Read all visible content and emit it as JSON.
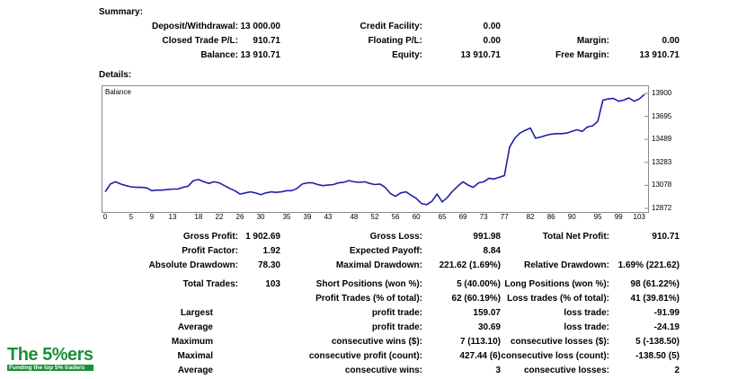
{
  "summary": {
    "title": "Summary:",
    "deposit_label": "Deposit/Withdrawal:",
    "deposit_value": "13 000.00",
    "credit_label": "Credit Facility:",
    "credit_value": "0.00",
    "closed_pl_label": "Closed Trade P/L:",
    "closed_pl_value": "910.71",
    "floating_pl_label": "Floating P/L:",
    "floating_pl_value": "0.00",
    "margin_label": "Margin:",
    "margin_value": "0.00",
    "balance_label": "Balance:",
    "balance_value": "13 910.71",
    "equity_label": "Equity:",
    "equity_value": "13 910.71",
    "free_margin_label": "Free Margin:",
    "free_margin_value": "13 910.71"
  },
  "details": {
    "title": "Details:"
  },
  "chart_data": {
    "type": "line",
    "title": "Balance",
    "xlabel": "",
    "ylabel": "",
    "x_ticks": [
      "0",
      "5",
      "9",
      "13",
      "18",
      "22",
      "26",
      "30",
      "35",
      "39",
      "43",
      "48",
      "52",
      "56",
      "60",
      "65",
      "69",
      "73",
      "77",
      "82",
      "86",
      "90",
      "95",
      "99",
      "103"
    ],
    "y_ticks": [
      "13900",
      "13695",
      "13489",
      "13283",
      "13078",
      "12872"
    ],
    "ylim": [
      12872,
      13900
    ],
    "xlim": [
      0,
      104
    ],
    "grid": false,
    "series": [
      {
        "name": "",
        "color": "#1f1fa8",
        "x": [
          0,
          1,
          2,
          3,
          4,
          5,
          6,
          7,
          8,
          9,
          10,
          11,
          12,
          13,
          14,
          15,
          16,
          17,
          18,
          19,
          20,
          21,
          22,
          23,
          24,
          25,
          26,
          27,
          28,
          29,
          30,
          31,
          32,
          33,
          34,
          35,
          36,
          37,
          38,
          39,
          40,
          41,
          42,
          43,
          44,
          45,
          46,
          47,
          48,
          49,
          50,
          51,
          52,
          53,
          54,
          55,
          56,
          57,
          58,
          59,
          60,
          61,
          62,
          63,
          64,
          65,
          66,
          67,
          68,
          69,
          70,
          71,
          72,
          73,
          74,
          75,
          76,
          77,
          78,
          79,
          80,
          81,
          82,
          83,
          84,
          85,
          86,
          87,
          88,
          89,
          90,
          91,
          92,
          93,
          94,
          95,
          96,
          97,
          98,
          99,
          100,
          101,
          102,
          103,
          104
        ],
        "values": [
          13020,
          13090,
          13110,
          13090,
          13075,
          13065,
          13060,
          13060,
          13055,
          13030,
          13035,
          13035,
          13040,
          13045,
          13045,
          13060,
          13070,
          13120,
          13130,
          13110,
          13095,
          13110,
          13100,
          13075,
          13050,
          13030,
          13000,
          13010,
          13020,
          13010,
          12995,
          13010,
          13020,
          13015,
          13020,
          13030,
          13030,
          13050,
          13090,
          13100,
          13100,
          13085,
          13075,
          13080,
          13085,
          13100,
          13105,
          13120,
          13110,
          13105,
          13110,
          13095,
          13085,
          13090,
          13060,
          13005,
          12980,
          13010,
          13020,
          12990,
          12960,
          12915,
          12905,
          12935,
          13000,
          12930,
          12970,
          13025,
          13070,
          13110,
          13080,
          13060,
          13100,
          13110,
          13140,
          13135,
          13150,
          13165,
          13420,
          13500,
          13545,
          13570,
          13590,
          13500,
          13510,
          13525,
          13535,
          13540,
          13540,
          13545,
          13560,
          13575,
          13560,
          13600,
          13610,
          13650,
          13840,
          13850,
          13855,
          13830,
          13840,
          13860,
          13830,
          13850,
          13890
        ]
      }
    ]
  },
  "stats": {
    "gross_profit_label": "Gross Profit:",
    "gross_profit_value": "1 902.69",
    "gross_loss_label": "Gross Loss:",
    "gross_loss_value": "991.98",
    "total_net_profit_label": "Total Net Profit:",
    "total_net_profit_value": "910.71",
    "profit_factor_label": "Profit Factor:",
    "profit_factor_value": "1.92",
    "expected_payoff_label": "Expected Payoff:",
    "expected_payoff_value": "8.84",
    "absolute_drawdown_label": "Absolute Drawdown:",
    "absolute_drawdown_value": "78.30",
    "maximal_drawdown_label": "Maximal Drawdown:",
    "maximal_drawdown_value": "221.62 (1.69%)",
    "relative_drawdown_label": "Relative Drawdown:",
    "relative_drawdown_value": "1.69% (221.62)",
    "total_trades_label": "Total Trades:",
    "total_trades_value": "103",
    "short_positions_label": "Short Positions (won %):",
    "short_positions_value": "5 (40.00%)",
    "long_positions_label": "Long Positions (won %):",
    "long_positions_value": "98 (61.22%)",
    "profit_trades_label": "Profit Trades (% of total):",
    "profit_trades_value": "62 (60.19%)",
    "loss_trades_label": "Loss trades (% of total):",
    "loss_trades_value": "41 (39.81%)",
    "largest_label": "Largest",
    "largest_profit_label": "profit trade:",
    "largest_profit_value": "159.07",
    "largest_loss_label": "loss trade:",
    "largest_loss_value": "-91.99",
    "average_label": "Average",
    "average_profit_label": "profit trade:",
    "average_profit_value": "30.69",
    "average_loss_label": "loss trade:",
    "average_loss_value": "-24.19",
    "maximum_label": "Maximum",
    "max_cons_wins_label": "consecutive wins ($):",
    "max_cons_wins_value": "7 (113.10)",
    "max_cons_losses_label": "consecutive losses ($):",
    "max_cons_losses_value": "5 (-138.50)",
    "maximal_label": "Maximal",
    "maximal_cons_profit_label": "consecutive profit (count):",
    "maximal_cons_profit_value": "427.44 (6)",
    "maximal_cons_loss_label": "consecutive loss (count):",
    "maximal_cons_loss_value": "-138.50 (5)",
    "average2_label": "Average",
    "avg_cons_wins_label": "consecutive wins:",
    "avg_cons_wins_value": "3",
    "avg_cons_losses_label": "consecutive losses:",
    "avg_cons_losses_value": "2"
  },
  "logo": {
    "main_text": "The 5%ers",
    "tagline": "Funding the top 5% traders",
    "color": "#1c8f3b"
  }
}
